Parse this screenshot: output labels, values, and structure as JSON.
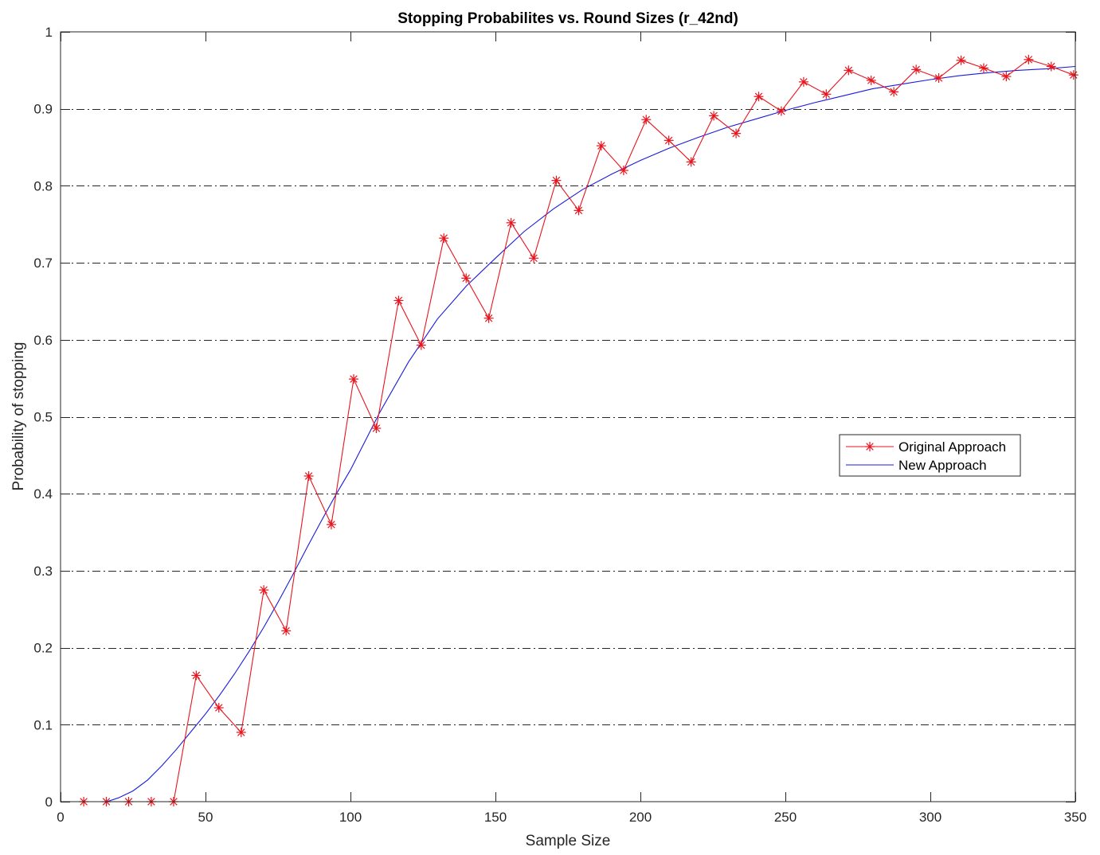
{
  "chart_data": {
    "type": "line",
    "title": "Stopping Probabilites vs. Round Sizes (r_42nd)",
    "xlabel": "Sample Size",
    "ylabel": "Probability of stopping",
    "xlim": [
      0,
      350
    ],
    "ylim": [
      0,
      1
    ],
    "xticks": [
      0,
      50,
      100,
      150,
      200,
      250,
      300,
      350
    ],
    "xtick_labels": [
      "0",
      "50",
      "100",
      "150",
      "200",
      "250",
      "300",
      "350"
    ],
    "yticks": [
      0,
      0.1,
      0.2,
      0.3,
      0.4,
      0.5,
      0.6,
      0.7,
      0.8,
      0.9,
      1
    ],
    "ytick_labels": [
      "0",
      "0.1",
      "0.2",
      "0.3",
      "0.4",
      "0.5",
      "0.6",
      "0.7",
      "0.8",
      "0.9",
      "1"
    ],
    "grid": "horizontal dash-dot",
    "legend_position": "right-middle",
    "series": [
      {
        "name": "Original Approach",
        "color": "#e8141d",
        "marker": "asterisk",
        "x": [
          8,
          15.8,
          23.5,
          31.3,
          39,
          46.8,
          54.6,
          62.3,
          70.1,
          77.8,
          85.6,
          93.4,
          101.1,
          108.9,
          116.6,
          124.4,
          132.2,
          139.9,
          147.7,
          155.4,
          163.2,
          171,
          178.7,
          186.5,
          194.2,
          202,
          209.8,
          217.5,
          225.3,
          233,
          240.8,
          248.6,
          256.3,
          264.1,
          271.8,
          279.6,
          287.4,
          295.1,
          302.9,
          310.6,
          318.4,
          326.2,
          333.9,
          341.7,
          349.4
        ],
        "y": [
          0,
          0,
          0,
          0,
          0,
          0.164,
          0.122,
          0.09,
          0.275,
          0.222,
          0.423,
          0.36,
          0.549,
          0.485,
          0.651,
          0.593,
          0.732,
          0.68,
          0.628,
          0.752,
          0.706,
          0.807,
          0.768,
          0.852,
          0.82,
          0.886,
          0.859,
          0.831,
          0.891,
          0.868,
          0.916,
          0.897,
          0.935,
          0.919,
          0.95,
          0.937,
          0.922,
          0.951,
          0.94,
          0.963,
          0.953,
          0.942,
          0.964,
          0.955,
          0.944
        ]
      },
      {
        "name": "New Approach",
        "color": "#1a1adc",
        "marker": "none",
        "x": [
          8,
          16,
          20,
          25,
          30,
          35,
          40,
          45,
          50,
          55,
          60,
          65,
          70,
          75,
          80,
          85,
          90,
          95,
          100,
          110,
          120,
          130,
          140,
          150,
          160,
          170,
          180,
          190,
          200,
          210,
          220,
          230,
          240,
          250,
          260,
          270,
          280,
          290,
          300,
          310,
          320,
          330,
          340,
          350
        ],
        "y": [
          0,
          0,
          0.005,
          0.014,
          0.028,
          0.047,
          0.068,
          0.091,
          0.114,
          0.139,
          0.166,
          0.195,
          0.226,
          0.259,
          0.294,
          0.33,
          0.365,
          0.399,
          0.431,
          0.505,
          0.571,
          0.627,
          0.67,
          0.706,
          0.741,
          0.77,
          0.795,
          0.815,
          0.833,
          0.849,
          0.863,
          0.876,
          0.887,
          0.898,
          0.908,
          0.917,
          0.926,
          0.932,
          0.938,
          0.943,
          0.947,
          0.95,
          0.952,
          0.955
        ]
      }
    ]
  }
}
